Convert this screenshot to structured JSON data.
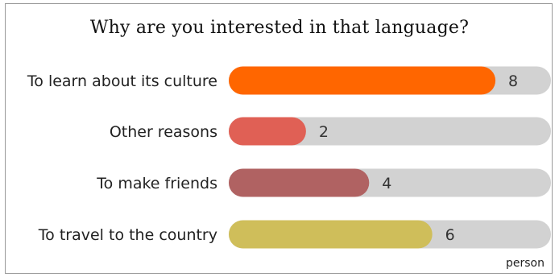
{
  "chart_data": {
    "type": "bar",
    "orientation": "horizontal",
    "title": "Why are you interested in that language?",
    "unit": "person",
    "categories": [
      "To learn about its culture",
      "Other reasons",
      "To make friends",
      "To travel to the country"
    ],
    "values": [
      8,
      2,
      4,
      6
    ],
    "colors": [
      "#ff6600",
      "#e06055",
      "#b06262",
      "#cfbe5a"
    ],
    "track_color": "#d2d2d2",
    "xlim": [
      0,
      10
    ],
    "grid": false,
    "legend": "none"
  }
}
